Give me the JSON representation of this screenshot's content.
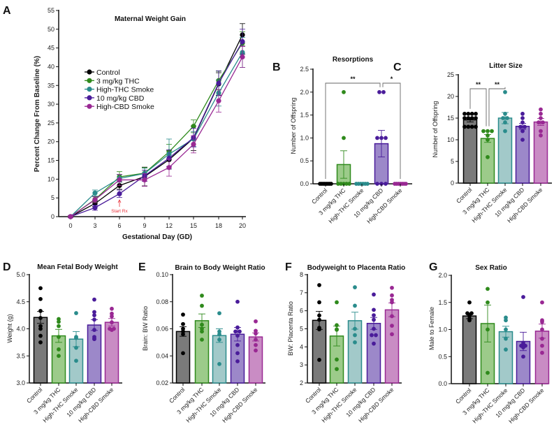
{
  "colors": {
    "Control": {
      "line": "#000000",
      "fill": "#7a7a7a"
    },
    "3 mg/kg THC": {
      "line": "#2f8a1c",
      "fill": "#9ccb8a"
    },
    "High-THC Smoke": {
      "line": "#2a8c8c",
      "fill": "#a2c9c9"
    },
    "10 mg/kg CBD": {
      "line": "#4a1c9a",
      "fill": "#9c88c9"
    },
    "High-CBD Smoke": {
      "line": "#992893",
      "fill": "#c98cc4"
    },
    "annotation": "#e8313a"
  },
  "chart_data": [
    {
      "panel": "A",
      "type": "line",
      "title": "Maternal Weight Gain",
      "xlabel": "Gestational Day (GD)",
      "ylabel": "Percent Change From Baseline (%)",
      "x": [
        "0",
        "3",
        "6",
        "9",
        "12",
        "15",
        "18",
        "20"
      ],
      "ylim": [
        0,
        55
      ],
      "yticks": [
        "0",
        "5",
        "10",
        "15",
        "20",
        "25",
        "30",
        "35",
        "40",
        "45",
        "50",
        "55"
      ],
      "legend": "upper-left",
      "annotation": {
        "text": "Start Rx",
        "x": "6"
      },
      "series": [
        {
          "name": "Control",
          "values": [
            0,
            3.5,
            8.3,
            10.7,
            15.2,
            20.9,
            35.4,
            48.5
          ],
          "sem": [
            0.3,
            0.8,
            1.0,
            2.5,
            2.5,
            3.3,
            3.0,
            3.0
          ]
        },
        {
          "name": "3 mg/kg THC",
          "values": [
            0,
            4.6,
            10.6,
            11.6,
            17.3,
            24.1,
            36.3,
            46.3
          ],
          "sem": [
            0.3,
            0.8,
            1.4,
            1.5,
            2.0,
            1.7,
            2.5,
            3.0
          ]
        },
        {
          "name": "High-THC Smoke",
          "values": [
            0,
            6.3,
            10.2,
            11.5,
            16.7,
            20.7,
            33.0,
            43.8
          ],
          "sem": [
            0.3,
            0.8,
            1.0,
            1.4,
            4.0,
            2.0,
            3.5,
            4.0
          ]
        },
        {
          "name": "10 mg/kg CBD",
          "values": [
            0,
            2.4,
            6.1,
            10.9,
            15.6,
            21.1,
            35.6,
            46.7
          ],
          "sem": [
            0.3,
            0.7,
            1.0,
            1.5,
            2.2,
            2.5,
            3.3,
            3.3
          ]
        },
        {
          "name": "High-CBD Smoke",
          "values": [
            0,
            4.5,
            9.8,
            9.8,
            13.1,
            19.3,
            30.9,
            42.6
          ],
          "sem": [
            0.3,
            0.8,
            1.5,
            1.7,
            2.3,
            2.3,
            3.0,
            2.8
          ]
        }
      ]
    },
    {
      "panel": "B",
      "type": "bar",
      "title": "Resorptions",
      "ylabel": "Number of Offspring",
      "categories": [
        "Control",
        "3 mg/kg THC",
        "High-THC Smoke",
        "10 mg/kg CBD",
        "High-CBD Smoke"
      ],
      "ylim": [
        0,
        2.5
      ],
      "yticks": [
        "0.0",
        "0.5",
        "1.0",
        "1.5",
        "2.0",
        "2.5"
      ],
      "values": [
        0,
        0.42,
        0,
        0.875,
        0
      ],
      "sem": [
        0,
        0.3,
        0,
        0.29,
        0
      ],
      "points": [
        [
          0,
          0,
          0,
          0,
          0,
          0,
          0,
          0
        ],
        [
          2,
          1,
          0,
          0,
          0,
          0,
          0
        ],
        [
          0,
          0,
          0,
          0,
          0,
          0
        ],
        [
          2,
          2,
          1,
          1,
          1,
          0,
          0,
          0
        ],
        [
          0,
          0,
          0,
          0,
          0,
          0,
          0
        ]
      ],
      "significance": [
        {
          "from": 0,
          "to": 3,
          "label": "**"
        },
        {
          "from": 3,
          "to": 4,
          "label": "*"
        }
      ]
    },
    {
      "panel": "C",
      "type": "bar",
      "title": "Litter Size",
      "ylabel": "Number of Offspring",
      "categories": [
        "Control",
        "3 mg/kg THC",
        "High-THC Smoke",
        "10 mg/kg CBD",
        "High-CBD Smoke"
      ],
      "ylim": [
        0,
        25
      ],
      "yticks": [
        "0",
        "5",
        "10",
        "15",
        "20",
        "25"
      ],
      "values": [
        14.6,
        10.3,
        15.0,
        13.1,
        14.1
      ],
      "sem": [
        0.5,
        0.9,
        1.3,
        0.7,
        0.8
      ],
      "points": [
        [
          16,
          16,
          16,
          16,
          15,
          15,
          15,
          15,
          13,
          13,
          13,
          13
        ],
        [
          12,
          12,
          12,
          11,
          10,
          6
        ],
        [
          21,
          16,
          15,
          15,
          14,
          12
        ],
        [
          16,
          15,
          14,
          13,
          13,
          12,
          10
        ],
        [
          17,
          16,
          15,
          14,
          14,
          12,
          11
        ]
      ],
      "significance": [
        {
          "from": 0,
          "to": 1,
          "label": "**"
        },
        {
          "from": 1,
          "to": 2,
          "label": "**"
        }
      ]
    },
    {
      "panel": "D",
      "type": "bar",
      "title": "Mean Fetal Body Weight",
      "ylabel": "Weight (g)",
      "categories": [
        "Control",
        "3 mg/kg THC",
        "High-THC Smoke",
        "10 mg/kg CBD",
        "High-CBD Smoke"
      ],
      "ylim": [
        3.0,
        5.0
      ],
      "yticks": [
        "3.0",
        "3.5",
        "4.0",
        "4.5",
        "5.0"
      ],
      "values": [
        4.21,
        3.87,
        3.81,
        4.07,
        4.12
      ],
      "sem": [
        0.11,
        0.12,
        0.14,
        0.1,
        0.07
      ],
      "points": [
        [
          4.75,
          4.55,
          4.33,
          4.2,
          4.05,
          4.0,
          3.87,
          3.75
        ],
        [
          4.18,
          4.13,
          4.05,
          3.85,
          3.62,
          3.5
        ],
        [
          4.29,
          3.85,
          3.83,
          3.65,
          3.41
        ],
        [
          4.54,
          4.31,
          4.25,
          4.17,
          3.98,
          3.85,
          3.82,
          3.81
        ],
        [
          4.37,
          4.28,
          4.23,
          4.12,
          4.0,
          4.0,
          3.98
        ]
      ]
    },
    {
      "panel": "E",
      "type": "bar",
      "title": "Brain to Body Weight Ratio",
      "ylabel": "Brain: BW Ratio",
      "categories": [
        "Control",
        "3 mg/kg THC",
        "High-THC Smoke",
        "10 mg/kg CBD",
        "High-CBD Smoke"
      ],
      "ylim": [
        0.02,
        0.1
      ],
      "yticks": [
        "0.02",
        "0.04",
        "0.06",
        "0.08",
        "0.10"
      ],
      "values": [
        0.058,
        0.066,
        0.055,
        0.056,
        0.054
      ],
      "sem": [
        0.0035,
        0.005,
        0.005,
        0.005,
        0.003
      ],
      "points": [
        [
          0.0705,
          0.0635,
          0.06,
          0.058,
          0.056,
          0.042
        ],
        [
          0.0845,
          0.077,
          0.063,
          0.06,
          0.058,
          0.052
        ],
        [
          0.0715,
          0.058,
          0.056,
          0.052,
          0.034
        ],
        [
          0.08,
          0.061,
          0.058,
          0.058,
          0.055,
          0.048,
          0.042,
          0.036
        ],
        [
          0.0655,
          0.0585,
          0.0565,
          0.052,
          0.048,
          0.044
        ]
      ]
    },
    {
      "panel": "F",
      "type": "bar",
      "title": "Bodyweight to Placenta Ratio",
      "ylabel": "BW: Placenta Ratio",
      "categories": [
        "Control",
        "3 mg/kg THC",
        "High-THC Smoke",
        "10 mg/kg CBD",
        "High-CBD Smoke"
      ],
      "ylim": [
        2,
        8
      ],
      "yticks": [
        "2",
        "3",
        "4",
        "5",
        "6",
        "7",
        "8"
      ],
      "values": [
        5.47,
        4.6,
        5.45,
        5.3,
        6.05
      ],
      "sem": [
        0.5,
        0.55,
        0.47,
        0.33,
        0.38
      ],
      "points": [
        [
          7.42,
          6.47,
          5.74,
          5.5,
          5.05,
          4.97,
          3.28
        ],
        [
          6.47,
          5.2,
          4.97,
          4.95,
          3.3,
          2.77
        ],
        [
          7.3,
          6.28,
          5.0,
          4.65,
          4.25
        ],
        [
          6.9,
          6.05,
          5.75,
          5.5,
          5.0,
          4.65,
          4.65,
          4.18
        ],
        [
          7.27,
          6.85,
          6.6,
          6.47,
          5.7,
          5.17,
          4.7
        ]
      ]
    },
    {
      "panel": "G",
      "type": "bar",
      "title": "Sex Ratio",
      "ylabel": "Male to Female",
      "categories": [
        "Control",
        "3 mg/kg THC",
        "High-THC Smoke",
        "10 mg/kg CBD",
        "High-CBD Smoke"
      ],
      "ylim": [
        0,
        2.0
      ],
      "yticks": [
        "0.0",
        "0.5",
        "1.0",
        "1.5",
        "2.0"
      ],
      "values": [
        1.25,
        1.11,
        0.96,
        0.78,
        0.97
      ],
      "sem": [
        0.05,
        0.34,
        0.1,
        0.17,
        0.13
      ],
      "points": [
        [
          1.5,
          1.3,
          1.3,
          1.27,
          1.25,
          1.2,
          1.17
        ],
        [
          1.75,
          1.5,
          1.0,
          0.2
        ],
        [
          1.22,
          1.17,
          1.0,
          0.83,
          0.63
        ],
        [
          1.6,
          0.75,
          0.7,
          0.7,
          0.67,
          0.5
        ],
        [
          1.5,
          1.17,
          1.14,
          1.0,
          0.83,
          0.7,
          0.57
        ]
      ]
    }
  ]
}
